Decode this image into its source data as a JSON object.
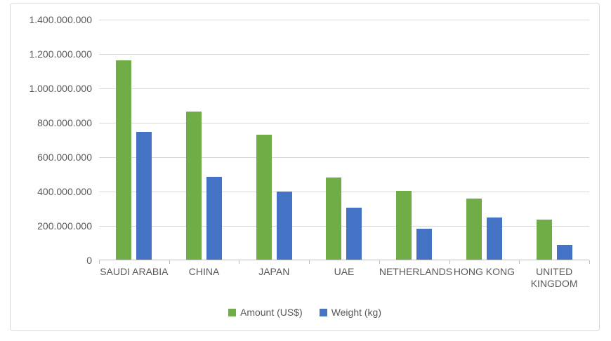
{
  "chart_data": {
    "type": "bar",
    "title": "",
    "categories": [
      "SAUDI ARABIA",
      "CHINA",
      "JAPAN",
      "UAE",
      "NETHERLANDS",
      "HONG KONG",
      "UNITED KINGDOM"
    ],
    "series": [
      {
        "name": "Amount (US$)",
        "color": "#70AD47",
        "values": [
          1160000000,
          860000000,
          728000000,
          477000000,
          401000000,
          356000000,
          232000000
        ]
      },
      {
        "name": "Weight (kg)",
        "color": "#4472C4",
        "values": [
          744000000,
          483000000,
          396000000,
          302000000,
          180000000,
          245000000,
          86000000
        ]
      }
    ],
    "xlabel": "",
    "ylabel": "",
    "ylim": [
      0,
      1400000000
    ],
    "y_tick_interval": 200000000,
    "y_tick_labels": [
      "0",
      "200.000.000",
      "400.000.000",
      "600.000.000",
      "800.000.000",
      "1.000.000.000",
      "1.200.000.000",
      "1.400.000.000"
    ],
    "grid": true,
    "legend_position": "bottom"
  },
  "colors": {
    "grid": "#D9D9D9",
    "axis": "#BFBFBF",
    "text": "#595959",
    "panel_border": "#D9D9D9",
    "background": "#FFFFFF"
  }
}
